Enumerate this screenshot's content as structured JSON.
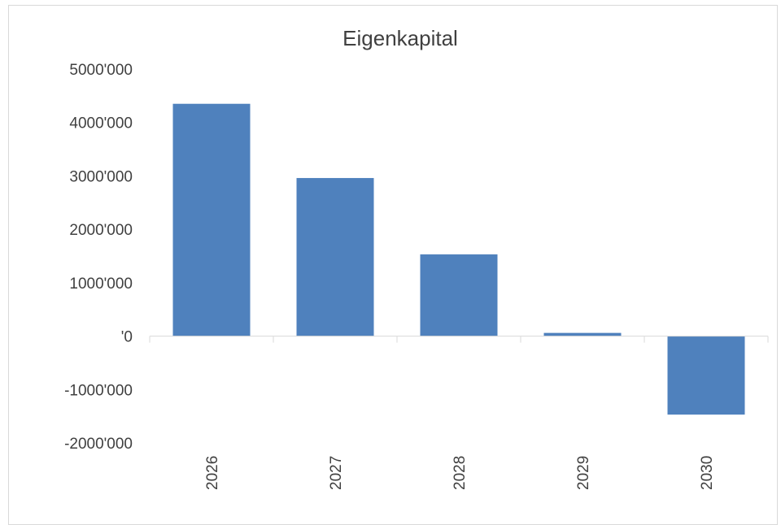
{
  "chart_data": {
    "type": "bar",
    "title": "Eigenkapital",
    "xlabel": "",
    "ylabel": "",
    "categories": [
      "2026",
      "2027",
      "2028",
      "2029",
      "2030"
    ],
    "values": [
      4350000,
      2960000,
      1530000,
      60000,
      -1470000
    ],
    "ylim": [
      -2000000,
      5000000
    ],
    "yticks": [
      5000000,
      4000000,
      3000000,
      2000000,
      1000000,
      0,
      -1000000,
      -2000000
    ],
    "ytick_labels": [
      "5000'000",
      "4000'000",
      "3000'000",
      "2000'000",
      "1000'000",
      "'0",
      "-1000'000",
      "-2000'000"
    ],
    "grid": false,
    "legend": "none",
    "bar_color": "#4f81bd",
    "axis_color": "#d9d9d9",
    "text_color": "#404040"
  }
}
